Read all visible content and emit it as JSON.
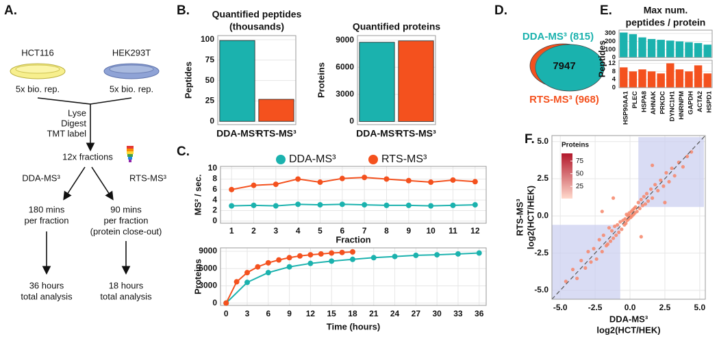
{
  "panels": [
    "A.",
    "B.",
    "C.",
    "D.",
    "E.",
    "F."
  ],
  "diagram": {
    "cell_lines": [
      "HCT116",
      "HEK293T"
    ],
    "replicates": [
      "5x bio. rep.",
      "5x bio. rep."
    ],
    "steps": [
      "Lyse",
      "Digest",
      "TMT label"
    ],
    "fractions": "12x fractions",
    "methods": [
      "DDA-MS³",
      "RTS-MS³"
    ],
    "time_per_fraction": [
      [
        "180 mins",
        "per fraction"
      ],
      [
        "90 mins",
        "per fraction",
        "(protein close-out)"
      ]
    ],
    "total": [
      [
        "36 hours",
        "total analysis"
      ],
      [
        "18 hours",
        "total analysis"
      ]
    ]
  },
  "chart_data": [
    {
      "type": "bar",
      "title": [
        "Quantified peptides",
        "(thousands)"
      ],
      "categories": [
        "DDA-MS³",
        "RTS-MS³"
      ],
      "values": [
        99,
        27
      ],
      "colors": [
        "#1bb2ae",
        "#f4511e"
      ],
      "ylim": [
        -4,
        105
      ],
      "yticks": [
        0,
        25,
        50,
        75,
        100
      ],
      "ylabel": "Peptides",
      "grid": true
    },
    {
      "type": "bar",
      "title": [
        "Quantified proteins"
      ],
      "categories": [
        "DDA-MS³",
        "RTS-MS³"
      ],
      "values": [
        8762,
        8915
      ],
      "colors": [
        "#1bb2ae",
        "#f4511e"
      ],
      "ylim": [
        -350,
        9500
      ],
      "yticks": [
        0,
        3000,
        6000,
        9000
      ],
      "ylabel": "Proteins",
      "grid": true
    },
    {
      "type": "line",
      "legend": "top",
      "xlim": [
        0.5,
        12.5
      ],
      "xticks": [
        1,
        2,
        3,
        4,
        5,
        6,
        7,
        8,
        9,
        10,
        11,
        12
      ],
      "ylim": [
        -0.4,
        10.4
      ],
      "yticks": [
        0,
        2,
        4,
        6,
        8,
        10
      ],
      "xlabel": "Fraction",
      "ylabel": "MS² / sec.",
      "grid": true,
      "series": [
        {
          "name": "DDA-MS³",
          "color": "#1bb2ae",
          "x": [
            1,
            2,
            3,
            4,
            5,
            6,
            7,
            8,
            9,
            10,
            11,
            12
          ],
          "values": [
            2.9,
            3.0,
            2.9,
            3.2,
            3.1,
            3.2,
            3.1,
            3.0,
            3.0,
            2.9,
            3.0,
            3.1
          ]
        },
        {
          "name": "RTS-MS³",
          "color": "#f4511e",
          "x": [
            1,
            2,
            3,
            4,
            5,
            6,
            7,
            8,
            9,
            10,
            11,
            12
          ],
          "values": [
            6.0,
            6.8,
            7.0,
            8.0,
            7.4,
            8.1,
            8.3,
            8.0,
            7.7,
            7.4,
            7.8,
            7.5
          ]
        }
      ]
    },
    {
      "type": "line",
      "xlim": [
        -0.8,
        37
      ],
      "xticks": [
        0,
        3,
        6,
        9,
        12,
        15,
        18,
        21,
        24,
        27,
        30,
        33,
        36
      ],
      "ylim": [
        -400,
        9600
      ],
      "yticks": [
        0,
        3000,
        6000,
        9000
      ],
      "xlabel": "Time (hours)",
      "ylabel": "Proteins",
      "grid": true,
      "series": [
        {
          "color": "#1bb2ae",
          "x": [
            0,
            3,
            6,
            9,
            12,
            15,
            18,
            21,
            24,
            27,
            30,
            33,
            36
          ],
          "values": [
            0,
            3600,
            5300,
            6300,
            6900,
            7300,
            7600,
            7900,
            8100,
            8300,
            8400,
            8550,
            8700
          ]
        },
        {
          "color": "#f4511e",
          "x": [
            0,
            1.5,
            3,
            4.5,
            6,
            7.5,
            9,
            10.5,
            12,
            13.5,
            15,
            16.5,
            18
          ],
          "values": [
            0,
            3700,
            5300,
            6300,
            7000,
            7500,
            7900,
            8200,
            8400,
            8550,
            8700,
            8800,
            8900
          ]
        }
      ]
    },
    {
      "type": "venn",
      "overlap": 7947,
      "series": [
        {
          "name": "DDA-MS³",
          "value": 815,
          "value_label": "(815)",
          "color": "#1bb2ae"
        },
        {
          "name": "RTS-MS³",
          "value": 968,
          "value_label": "(968)",
          "color": "#f4511e"
        }
      ]
    },
    {
      "type": "bar",
      "title": [
        "Max num.",
        "peptides / protein"
      ],
      "ylabel": "Peptides",
      "grid": true,
      "categories": [
        "HSP90AA1",
        "PLEC",
        "HSPA8",
        "AHNAK",
        "PRKDC",
        "DYNC1H1",
        "HNRNPM",
        "GAPDH",
        "ACTA2",
        "HSPD1"
      ],
      "series": [
        {
          "color": "#1bb2ae",
          "values": [
            310,
            290,
            250,
            230,
            220,
            210,
            200,
            190,
            180,
            160
          ],
          "ylim": [
            0,
            340
          ],
          "yticks": [
            0,
            100,
            200,
            300
          ]
        },
        {
          "color": "#f4511e",
          "values": [
            10,
            8,
            9,
            8,
            7,
            12,
            9,
            8,
            11,
            7
          ],
          "ylim": [
            0,
            13.5
          ],
          "yticks": [
            0,
            4,
            8,
            12
          ]
        }
      ]
    },
    {
      "type": "scatter",
      "color": "#f6866a",
      "xlim": [
        -5.6,
        5.4
      ],
      "ylim": [
        -5.6,
        5.4
      ],
      "xticks": [
        {
          "value": -5,
          "label": "-5.0"
        },
        -2.5,
        {
          "value": 0,
          "label": "0.0"
        },
        2.5,
        {
          "value": 5,
          "label": "5.0"
        }
      ],
      "yticks": [
        {
          "value": -5,
          "label": "-5.0"
        },
        -2.5,
        {
          "value": 0,
          "label": "0.0"
        },
        2.5,
        {
          "value": 5,
          "label": "5.0"
        }
      ],
      "xlabel": [
        "DDA-MS³",
        "log2(HCT/HEK)"
      ],
      "ylabel": [
        "RTS-MS³",
        "log2(HCT/HEK)"
      ],
      "grid": true,
      "shaded_regions": [
        {
          "x": [
            -5.6,
            -0.7
          ],
          "y": [
            -5.6,
            -0.6
          ]
        },
        {
          "x": [
            0.6,
            5.3
          ],
          "y": [
            0.6,
            5.3
          ]
        }
      ],
      "colorbar": {
        "title": "Proteins",
        "range": [
          1,
          90
        ],
        "ticks": [
          25,
          50,
          75
        ],
        "colors": [
          "#ffd9cc",
          "#b2182b"
        ]
      },
      "x": [
        -4.6,
        -4.1,
        -3.8,
        -3.5,
        -3.2,
        -3.0,
        -2.8,
        -2.6,
        -2.4,
        -2.2,
        -2.0,
        -1.9,
        -1.7,
        -1.6,
        -1.5,
        -1.4,
        -1.3,
        -1.2,
        -1.1,
        -1.0,
        -0.9,
        -0.8,
        -0.7,
        -0.6,
        -0.5,
        -0.4,
        -0.35,
        -0.3,
        -0.25,
        -0.2,
        -0.15,
        -0.1,
        -0.05,
        0,
        0.05,
        0.1,
        0.15,
        0.2,
        0.25,
        0.3,
        0.35,
        0.4,
        0.5,
        0.6,
        0.7,
        0.8,
        0.9,
        1.0,
        1.1,
        1.2,
        1.3,
        1.5,
        1.6,
        1.8,
        2.0,
        2.2,
        2.4,
        2.6,
        2.8,
        3.0,
        3.2,
        3.5,
        3.8,
        4.1,
        4.4,
        -2.0,
        -1.2,
        0.8,
        1.6,
        2.5
      ],
      "values": [
        -4.4,
        -3.6,
        -4.2,
        -3.0,
        -3.5,
        -2.4,
        -3.1,
        -2.2,
        -2.9,
        -1.6,
        -2.4,
        -1.3,
        -2.0,
        -1.9,
        -0.8,
        -1.7,
        -1.0,
        -1.5,
        -0.7,
        -1.3,
        -0.6,
        -1.1,
        -0.4,
        -0.9,
        -0.3,
        -0.6,
        -0.2,
        -0.5,
        0.1,
        -0.3,
        0.0,
        -0.2,
        0.2,
        0.0,
        -0.1,
        0.3,
        0.0,
        0.4,
        0.1,
        0.5,
        0.2,
        0.6,
        0.3,
        0.9,
        0.5,
        1.1,
        0.7,
        1.3,
        0.8,
        1.5,
        1.0,
        1.8,
        1.2,
        2.1,
        1.7,
        2.4,
        2.0,
        2.9,
        2.3,
        3.2,
        2.7,
        3.6,
        3.3,
        4.0,
        4.3,
        0.3,
        1.2,
        -1.4,
        3.4,
        0.9
      ]
    }
  ]
}
